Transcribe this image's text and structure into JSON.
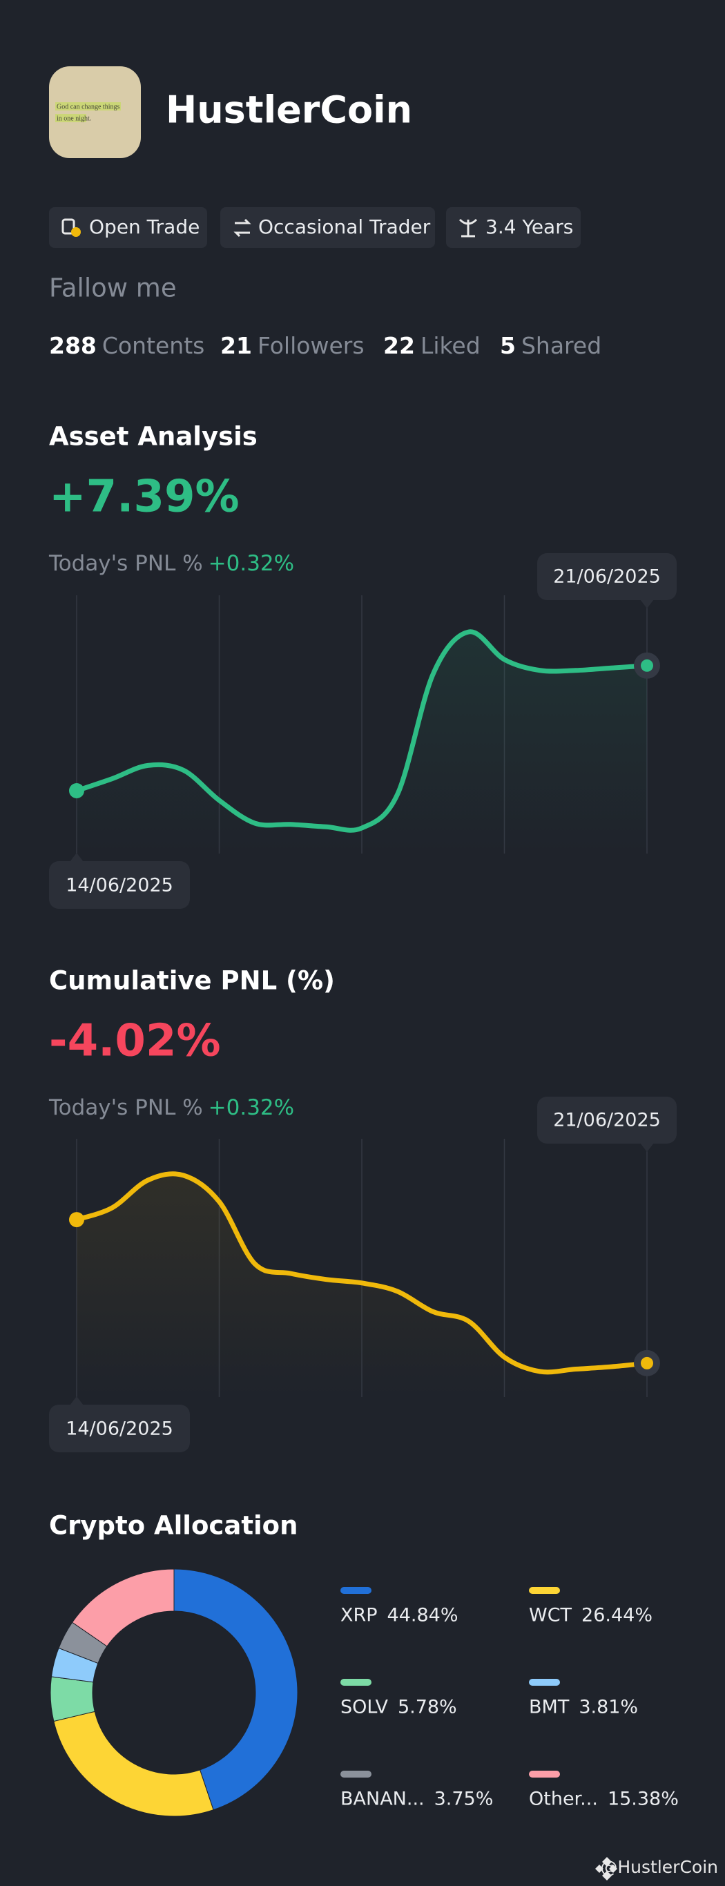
{
  "profile": {
    "avatar_text": [
      "God can change things",
      "in one night."
    ],
    "name": "HustlerCoin",
    "tags": [
      "Open Trade",
      "Occasional Trader",
      "3.4 Years"
    ],
    "follow_label": "Fallow me",
    "stats": [
      {
        "value": 288,
        "label": "Contents"
      },
      {
        "value": 21,
        "label": "Followers"
      },
      {
        "value": 22,
        "label": "Liked"
      },
      {
        "value": 5,
        "label": "Shared"
      }
    ]
  },
  "chart_data": [
    {
      "type": "line",
      "title": "Asset Analysis",
      "headline": "+7.39%",
      "headline_color": "#2ebd85",
      "today_label": "Today's PNL %",
      "today_value": "+0.32%",
      "start_label": "14/06/2025",
      "end_label": "21/06/2025",
      "color": "#2ebd85",
      "values": [
        4.3,
        5.3,
        6.4,
        6.0,
        3.5,
        1.6,
        1.5,
        1.3,
        1.2,
        4.0,
        14.0,
        17.5,
        15.2,
        14.3,
        14.3,
        14.5,
        14.7
      ]
    },
    {
      "type": "line",
      "title": "Cumulative PNL (%)",
      "headline": "-4.02%",
      "headline_color": "#f6465d",
      "today_label": "Today's PNL %",
      "today_value": "+0.32%",
      "start_label": "14/06/2025",
      "end_label": "21/06/2025",
      "color": "#f0b90b",
      "values": [
        13.5,
        14.5,
        16.8,
        17.2,
        15.0,
        9.8,
        9.0,
        8.5,
        8.2,
        7.5,
        5.8,
        5.0,
        2.0,
        0.8,
        1.0,
        1.2,
        1.5
      ]
    },
    {
      "type": "pie",
      "title": "Crypto Allocation",
      "categories": [
        "XRP",
        "WCT",
        "SOLV",
        "BMT",
        "BANAN...",
        "Other..."
      ],
      "values": [
        44.84,
        26.44,
        5.78,
        3.81,
        3.75,
        15.38
      ],
      "value_labels": [
        "44.84%",
        "26.44%",
        "5.78%",
        "3.81%",
        "3.75%",
        "15.38%"
      ],
      "colors": [
        "#2170d8",
        "#fdd535",
        "#7ddba6",
        "#8ecbfb",
        "#8b919b",
        "#fc9ea8"
      ]
    }
  ],
  "watermark": "@HustlerCoin"
}
